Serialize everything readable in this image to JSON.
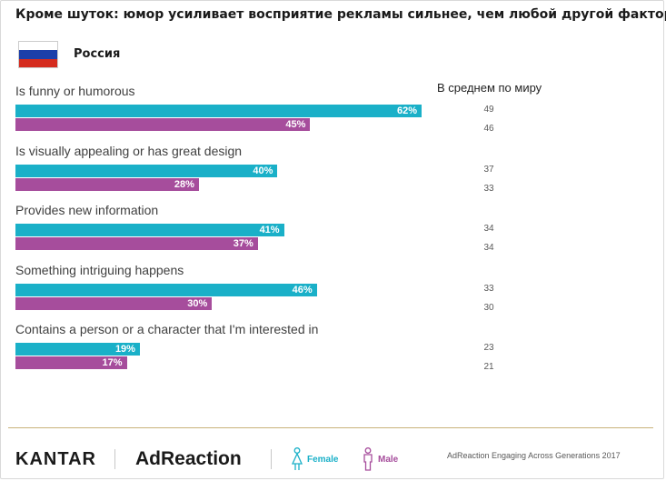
{
  "colors": {
    "female": "#1ab0c8",
    "male": "#a64d9c",
    "flag_white": "#ffffff",
    "flag_blue": "#1c3faa",
    "flag_red": "#d52b1e"
  },
  "chart_data": {
    "type": "bar",
    "orientation": "horizontal",
    "title": "Кроме шуток: юмор усиливает восприятие рекламы сильнее, чем любой другой фактор",
    "subtitle": "Россия",
    "world_header": "В среднем по миру",
    "xlim": [
      0,
      100
    ],
    "categories": [
      "Is funny or humorous",
      "Is visually appealing or has great design",
      "Provides new information",
      "Something intriguing happens",
      "Contains a person or a character that I'm interested in"
    ],
    "series": [
      {
        "name": "Female",
        "values": [
          62,
          40,
          41,
          46,
          19
        ]
      },
      {
        "name": "Male",
        "values": [
          45,
          28,
          37,
          30,
          17
        ]
      }
    ],
    "world_average": {
      "female": [
        49,
        37,
        34,
        33,
        23
      ],
      "male": [
        46,
        33,
        34,
        30,
        21
      ]
    }
  },
  "footer": {
    "kantar": "KANTAR",
    "adreaction": "AdReaction",
    "legend_female": "Female",
    "legend_male": "Male",
    "source": "AdReaction Engaging Across Generations 2017"
  }
}
